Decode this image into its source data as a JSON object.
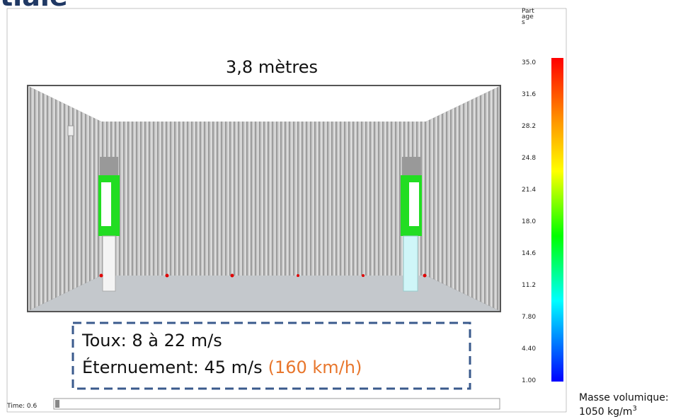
{
  "header": {
    "title": "tiale"
  },
  "scene": {
    "width_label": "3,8 mètres",
    "time": "Time: 0.6"
  },
  "colorbar": {
    "title_lines": [
      "Part",
      "age",
      "s"
    ],
    "ticks": [
      "35.0",
      "31.6",
      "28.2",
      "24.8",
      "21.4",
      "18.0",
      "14.6",
      "11.2",
      "7.80",
      "4.40",
      "1.00"
    ]
  },
  "callout": {
    "line1": "Toux: 8 à 22 m/s",
    "line2": "Éternuement: 45 m/s",
    "line2_highlight": "(160 km/h)"
  },
  "note": {
    "line1": "Masse volumique:",
    "line2": "1050 kg/m",
    "superscript": "3"
  }
}
